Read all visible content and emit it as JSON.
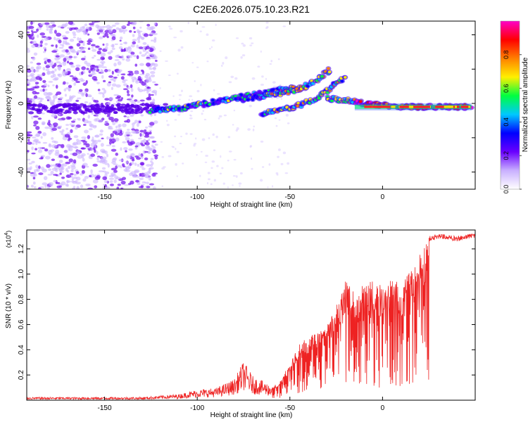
{
  "title": "C2E6.2026.075.10.23.R21",
  "chart_data": [
    {
      "type": "heatmap",
      "title": "C2E6.2026.075.10.23.R21",
      "xlabel": "Height of straight line (km)",
      "ylabel": "Frequency (Hz)",
      "xlim": [
        -192,
        50
      ],
      "ylim": [
        -50,
        48
      ],
      "x_ticks": [
        -150,
        -100,
        -50,
        0
      ],
      "y_ticks": [
        -40,
        -20,
        0,
        20,
        40
      ],
      "grid": false,
      "colorbar": {
        "label": "Normalized spectral amplitude",
        "range": [
          0,
          1
        ],
        "ticks": [
          0,
          0.2,
          0.4,
          0.6,
          0.8
        ],
        "colors": [
          "#ffffff",
          "#c9b0ff",
          "#6a00ff",
          "#0000ff",
          "#00c8ff",
          "#00ff40",
          "#fff000",
          "#ff8000",
          "#ff0000",
          "#ff00c8"
        ]
      },
      "traces": [
        {
          "points": [
            [
              -125,
              -4
            ],
            [
              -110,
              -3
            ],
            [
              -95,
              0
            ],
            [
              -80,
              3
            ],
            [
              -65,
              6
            ],
            [
              -55,
              8
            ],
            [
              -45,
              9
            ]
          ]
        },
        {
          "points": [
            [
              -75,
              2
            ],
            [
              -60,
              5
            ],
            [
              -45,
              8
            ],
            [
              -35,
              14
            ],
            [
              -28,
              20
            ]
          ]
        },
        {
          "points": [
            [
              -65,
              -6
            ],
            [
              -55,
              -4
            ],
            [
              -45,
              -1
            ],
            [
              -35,
              3
            ],
            [
              -25,
              12
            ],
            [
              -20,
              15
            ]
          ]
        },
        {
          "points": [
            [
              -30,
              3
            ],
            [
              -20,
              2
            ],
            [
              -10,
              0
            ],
            [
              0,
              -1
            ],
            [
              10,
              -2
            ],
            [
              25,
              -2
            ],
            [
              48,
              -2
            ]
          ]
        }
      ]
    },
    {
      "type": "line",
      "xlabel": "Height of straight line (km)",
      "ylabel": "SNR (10 * v/v)",
      "y_multiplier": "(x10^4)",
      "y_multiplier_base": "(x10",
      "y_multiplier_exp": "4",
      "y_multiplier_close": ")",
      "xlim": [
        -192,
        50
      ],
      "ylim": [
        0,
        1.35
      ],
      "x_ticks": [
        -150,
        -100,
        -50,
        0
      ],
      "y_ticks": [
        0.2,
        0.4,
        0.6,
        0.8,
        1.0,
        1.2
      ],
      "color": "#ee2222",
      "grid": false,
      "envelope": {
        "x": [
          -192,
          -150,
          -130,
          -110,
          -100,
          -90,
          -80,
          -75,
          -70,
          -60,
          -55,
          -50,
          -45,
          -40,
          -35,
          -30,
          -25,
          -20,
          -15,
          -10,
          -5,
          0,
          5,
          10,
          15,
          20,
          25,
          30,
          40,
          50
        ],
        "y": [
          0.02,
          0.02,
          0.02,
          0.04,
          0.07,
          0.08,
          0.14,
          0.26,
          0.16,
          0.1,
          0.16,
          0.3,
          0.45,
          0.5,
          0.55,
          0.6,
          0.75,
          0.95,
          0.85,
          0.92,
          0.95,
          0.9,
          1.0,
          0.9,
          1.05,
          1.2,
          1.3,
          1.32,
          1.3,
          1.33
        ]
      }
    }
  ]
}
